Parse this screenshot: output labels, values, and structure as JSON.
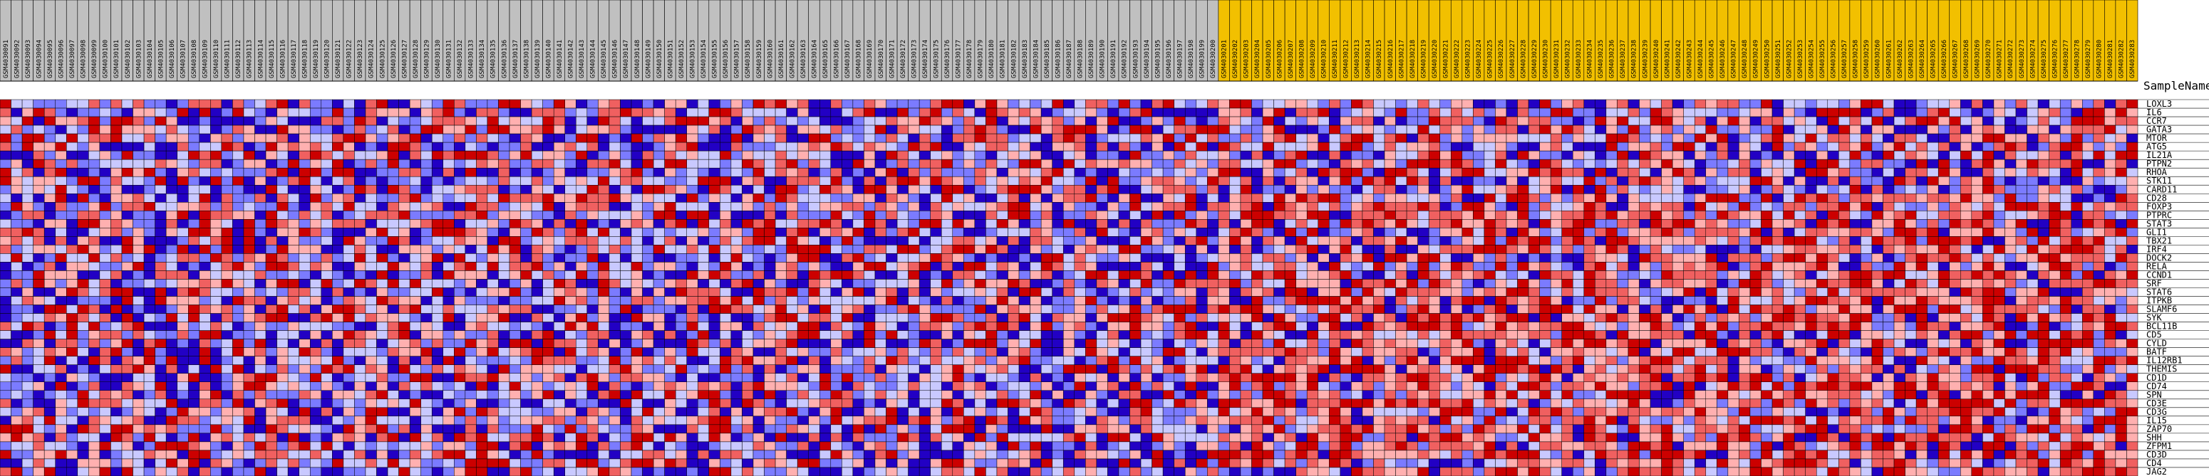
{
  "chart_data": {
    "type": "heatmap",
    "title": "",
    "corner_label": "SampleName",
    "colors": {
      "grey_group": "#c0c0c0",
      "gold_group": "#f2c000",
      "scale": [
        "#2200c4",
        "#7b7bff",
        "#c9c9ff",
        "#ffb0b0",
        "#f06060",
        "#cc0000"
      ]
    },
    "groups": [
      {
        "name": "grey",
        "color": "#c0c0c0",
        "count": 110
      },
      {
        "name": "gold",
        "color": "#f2c000",
        "count": 83
      }
    ],
    "genes": [
      "LOXL3",
      "IL6",
      "CCR7",
      "GATA3",
      "MTOR",
      "ATG5",
      "IL21A",
      "PTPN2",
      "RHOA",
      "STK11",
      "CARD11",
      "CD28",
      "FOXP3",
      "PTPRC",
      "STAT3",
      "GLI1",
      "TBX21",
      "IRF4",
      "DOCK2",
      "RELA",
      "CCND1",
      "SRF",
      "STAT6",
      "ITPKB",
      "SLAMF6",
      "SYK",
      "BCL11B",
      "CD5",
      "CYLD",
      "BATF",
      "IL12RB1",
      "THEMIS",
      "CD1D",
      "CD74",
      "SPN",
      "CD3E",
      "CD3G",
      "IL15",
      "ZAP70",
      "SHH",
      "ZFPM1",
      "CD3D",
      "CD4",
      "JAG2"
    ],
    "samples": [
      "GSM4030091",
      "GSM4030092",
      "GSM4030093",
      "GSM4030094",
      "GSM4030095",
      "GSM4030096",
      "GSM4030097",
      "GSM4030098",
      "GSM4030099",
      "GSM4030100",
      "GSM4030101",
      "GSM4030102",
      "GSM4030103",
      "GSM4030104",
      "GSM4030105",
      "GSM4030106",
      "GSM4030107",
      "GSM4030108",
      "GSM4030109",
      "GSM4030110",
      "GSM4030111",
      "GSM4030112",
      "GSM4030113",
      "GSM4030114",
      "GSM4030115",
      "GSM4030116",
      "GSM4030117",
      "GSM4030118",
      "GSM4030119",
      "GSM4030120",
      "GSM4030121",
      "GSM4030122",
      "GSM4030123",
      "GSM4030124",
      "GSM4030125",
      "GSM4030126",
      "GSM4030127",
      "GSM4030128",
      "GSM4030129",
      "GSM4030130",
      "GSM4030131",
      "GSM4030132",
      "GSM4030133",
      "GSM4030134",
      "GSM4030135",
      "GSM4030136",
      "GSM4030137",
      "GSM4030138",
      "GSM4030139",
      "GSM4030140",
      "GSM4030141",
      "GSM4030142",
      "GSM4030143",
      "GSM4030144",
      "GSM4030145",
      "GSM4030146",
      "GSM4030147",
      "GSM4030148",
      "GSM4030149",
      "GSM4030150",
      "GSM4030151",
      "GSM4030152",
      "GSM4030153",
      "GSM4030154",
      "GSM4030155",
      "GSM4030156",
      "GSM4030157",
      "GSM4030158",
      "GSM4030159",
      "GSM4030160",
      "GSM4030161",
      "GSM4030162",
      "GSM4030163",
      "GSM4030164",
      "GSM4030165",
      "GSM4030166",
      "GSM4030167",
      "GSM4030168",
      "GSM4030169",
      "GSM4030170",
      "GSM4030171",
      "GSM4030172",
      "GSM4030173",
      "GSM4030174",
      "GSM4030175",
      "GSM4030176",
      "GSM4030177",
      "GSM4030178",
      "GSM4030179",
      "GSM4030180",
      "GSM4030181",
      "GSM4030182",
      "GSM4030183",
      "GSM4030184",
      "GSM4030185",
      "GSM4030186",
      "GSM4030187",
      "GSM4030188",
      "GSM4030189",
      "GSM4030190",
      "GSM4030191",
      "GSM4030192",
      "GSM4030193",
      "GSM4030194",
      "GSM4030195",
      "GSM4030196",
      "GSM4030197",
      "GSM4030198",
      "GSM4030199",
      "GSM4030200",
      "GSM4030201",
      "GSM4030202",
      "GSM4030203",
      "GSM4030204",
      "GSM4030205",
      "GSM4030206",
      "GSM4030207",
      "GSM4030208",
      "GSM4030209",
      "GSM4030210",
      "GSM4030211",
      "GSM4030212",
      "GSM4030213",
      "GSM4030214",
      "GSM4030215",
      "GSM4030216",
      "GSM4030217",
      "GSM4030218",
      "GSM4030219",
      "GSM4030220",
      "GSM4030221",
      "GSM4030222",
      "GSM4030223",
      "GSM4030224",
      "GSM4030225",
      "GSM4030226",
      "GSM4030227",
      "GSM4030228",
      "GSM4030229",
      "GSM4030230",
      "GSM4030231",
      "GSM4030232",
      "GSM4030233",
      "GSM4030234",
      "GSM4030235",
      "GSM4030236",
      "GSM4030237",
      "GSM4030238",
      "GSM4030239",
      "GSM4030240",
      "GSM4030241",
      "GSM4030242",
      "GSM4030243",
      "GSM4030244",
      "GSM4030245",
      "GSM4030246",
      "GSM4030247",
      "GSM4030248",
      "GSM4030249",
      "GSM4030250",
      "GSM4030251",
      "GSM4030252",
      "GSM4030253",
      "GSM4030254",
      "GSM4030255",
      "GSM4030256",
      "GSM4030257",
      "GSM4030258",
      "GSM4030259",
      "GSM4030260",
      "GSM4030261",
      "GSM4030262",
      "GSM4030263",
      "GSM4030264",
      "GSM4030265",
      "GSM4030266",
      "GSM4030267",
      "GSM4030268",
      "GSM4030269",
      "GSM4030270",
      "GSM4030271",
      "GSM4030272",
      "GSM4030273",
      "GSM4030274",
      "GSM4030275",
      "GSM4030276",
      "GSM4030277",
      "GSM4030278",
      "GSM4030279",
      "GSM4030280",
      "GSM4030281",
      "GSM4030282",
      "GSM4030283"
    ],
    "value_levels": 6
  }
}
